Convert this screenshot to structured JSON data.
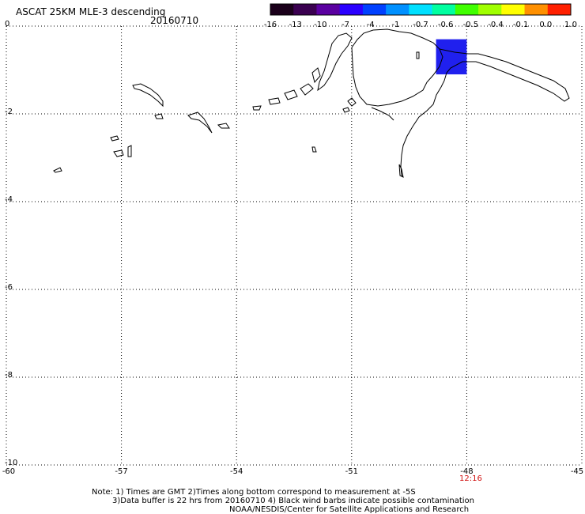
{
  "title": "ASCAT 25KM MLE-3 descending",
  "date": "20160710",
  "colorbar": {
    "labels": [
      "-16",
      "-13",
      "-10",
      "-7",
      "-4",
      "-1",
      "-0.7",
      "-0.6",
      "-0.5",
      "-0.4",
      "-0.1",
      "0.0",
      "1.0"
    ],
    "colors": [
      "#1a001a",
      "#3a0050",
      "#5a00a0",
      "#2a00ff",
      "#0040ff",
      "#0090ff",
      "#00e0ff",
      "#00ffa0",
      "#40ff00",
      "#a0ff00",
      "#ffff00",
      "#ff9000",
      "#ff2000"
    ]
  },
  "axes": {
    "y_labels": [
      "0",
      "-2",
      "-4",
      "-6",
      "-8",
      "-10"
    ],
    "x_labels": [
      "-60",
      "-57",
      "-54",
      "-51",
      "-48",
      "-45"
    ],
    "lat_range": [
      -10,
      0
    ],
    "lon_range": [
      -60,
      -45
    ]
  },
  "time_marker": "12:16",
  "data_patch": {
    "lon": [
      -48.8,
      -48.0
    ],
    "lat": [
      -1.1,
      -0.3
    ],
    "color": "#2020ee"
  },
  "notes": {
    "line1": "Note: 1) Times are GMT 2)Times along bottom correspond to measurement at -5S",
    "line2": "3)Data buffer is 22 hrs from 20160710 4) Black wind barbs indicate possible contamination",
    "line3": "NOAA/NESDIS/Center for Satellite Applications and Research"
  }
}
